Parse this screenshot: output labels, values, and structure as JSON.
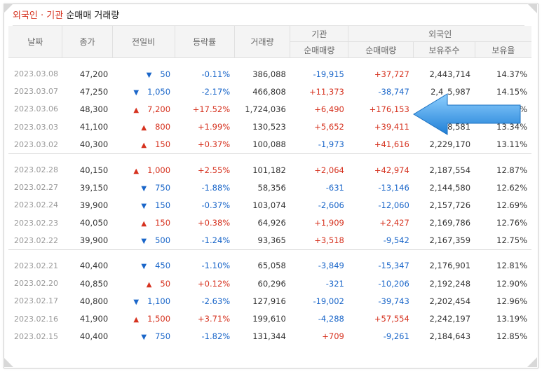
{
  "title": {
    "part1": "외국인 · 기관",
    "part2": "순매매 거래량"
  },
  "headers": {
    "date": "날짜",
    "close": "종가",
    "change": "전일비",
    "rate": "등락률",
    "volume": "거래량",
    "inst": "기관",
    "foreign": "외국인",
    "inst_net": "순매매량",
    "foreign_net": "순매매량",
    "foreign_hold": "보유주수",
    "foreign_ratio": "보유율"
  },
  "colors": {
    "up": "#d6321f",
    "down": "#1a66c9",
    "arrow": "#3d9be6"
  },
  "groups": [
    {
      "rows": [
        {
          "date": "2023.03.08",
          "close": "47,200",
          "dir": "down",
          "change": "50",
          "rate": "-0.11%",
          "volume": "386,088",
          "inst": "-19,915",
          "foreign": "+37,727",
          "hold": "2,443,714",
          "ratio": "14.37%"
        },
        {
          "date": "2023.03.07",
          "close": "47,250",
          "dir": "down",
          "change": "1,050",
          "rate": "-2.17%",
          "volume": "466,808",
          "inst": "+11,373",
          "foreign": "-38,747",
          "hold": "2,4_5,987",
          "ratio": "14.15%"
        },
        {
          "date": "2023.03.06",
          "close": "48,300",
          "dir": "up",
          "change": "7,200",
          "rate": "+17.52%",
          "volume": "1,724,036",
          "inst": "+6,490",
          "foreign": "+176,153",
          "hold": "",
          "ratio": "14.38%"
        },
        {
          "date": "2023.03.03",
          "close": "41,100",
          "dir": "up",
          "change": "800",
          "rate": "+1.99%",
          "volume": "130,523",
          "inst": "+5,652",
          "foreign": "+39,411",
          "hold": "_8,581",
          "ratio": "13.34%"
        },
        {
          "date": "2023.03.02",
          "close": "40,300",
          "dir": "up",
          "change": "150",
          "rate": "+0.37%",
          "volume": "100,088",
          "inst": "-1,973",
          "foreign": "+41,616",
          "hold": "2,229,170",
          "ratio": "13.11%"
        }
      ]
    },
    {
      "rows": [
        {
          "date": "2023.02.28",
          "close": "40,150",
          "dir": "up",
          "change": "1,000",
          "rate": "+2.55%",
          "volume": "101,182",
          "inst": "+2,064",
          "foreign": "+42,974",
          "hold": "2,187,554",
          "ratio": "12.87%"
        },
        {
          "date": "2023.02.27",
          "close": "39,150",
          "dir": "down",
          "change": "750",
          "rate": "-1.88%",
          "volume": "58,356",
          "inst": "-631",
          "foreign": "-13,146",
          "hold": "2,144,580",
          "ratio": "12.62%"
        },
        {
          "date": "2023.02.24",
          "close": "39,900",
          "dir": "down",
          "change": "150",
          "rate": "-0.37%",
          "volume": "103,074",
          "inst": "-2,606",
          "foreign": "-12,060",
          "hold": "2,157,726",
          "ratio": "12.69%"
        },
        {
          "date": "2023.02.23",
          "close": "40,050",
          "dir": "up",
          "change": "150",
          "rate": "+0.38%",
          "volume": "64,926",
          "inst": "+1,909",
          "foreign": "+2,427",
          "hold": "2,169,786",
          "ratio": "12.76%"
        },
        {
          "date": "2023.02.22",
          "close": "39,900",
          "dir": "down",
          "change": "500",
          "rate": "-1.24%",
          "volume": "93,365",
          "inst": "+3,518",
          "foreign": "-9,542",
          "hold": "2,167,359",
          "ratio": "12.75%"
        }
      ]
    },
    {
      "rows": [
        {
          "date": "2023.02.21",
          "close": "40,400",
          "dir": "down",
          "change": "450",
          "rate": "-1.10%",
          "volume": "65,058",
          "inst": "-3,849",
          "foreign": "-15,347",
          "hold": "2,176,901",
          "ratio": "12.81%"
        },
        {
          "date": "2023.02.20",
          "close": "40,850",
          "dir": "up",
          "change": "50",
          "rate": "+0.12%",
          "volume": "60,296",
          "inst": "-321",
          "foreign": "-10,206",
          "hold": "2,192,248",
          "ratio": "12.90%"
        },
        {
          "date": "2023.02.17",
          "close": "40,800",
          "dir": "down",
          "change": "1,100",
          "rate": "-2.63%",
          "volume": "127,916",
          "inst": "-19,002",
          "foreign": "-39,743",
          "hold": "2,202,454",
          "ratio": "12.96%"
        },
        {
          "date": "2023.02.16",
          "close": "41,900",
          "dir": "up",
          "change": "1,500",
          "rate": "+3.71%",
          "volume": "199,610",
          "inst": "-4,288",
          "foreign": "+57,554",
          "hold": "2,242,197",
          "ratio": "13.19%"
        },
        {
          "date": "2023.02.15",
          "close": "40,400",
          "dir": "down",
          "change": "750",
          "rate": "-1.82%",
          "volume": "131,344",
          "inst": "+709",
          "foreign": "-9,261",
          "hold": "2,184,643",
          "ratio": "12.85%"
        }
      ]
    }
  ]
}
